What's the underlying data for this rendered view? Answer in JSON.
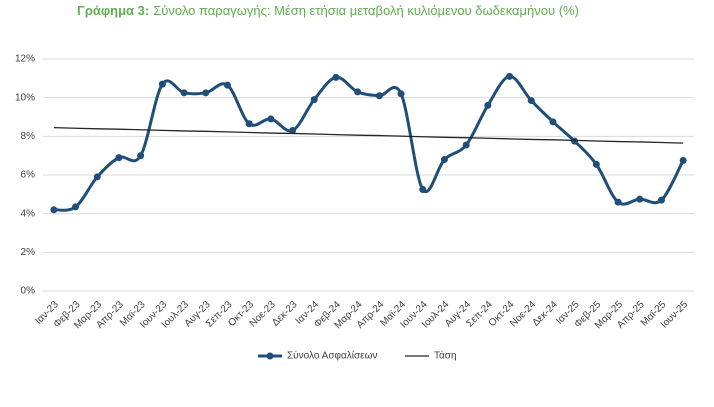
{
  "chart_data": {
    "type": "line",
    "title_label": "Γράφημα 3:",
    "title": "Σύνολο παραγωγής:  Μέση ετήσια μεταβολή κυλιόμενου δωδεκαμήνου (%)",
    "title_color": "#5fae4f",
    "categories": [
      "Ιαν-23",
      "Φεβ-23",
      "Μαρ-23",
      "Απρ-23",
      "Μαϊ-23",
      "Ιουν-23",
      "Ιουλ-23",
      "Αυγ-23",
      "Σεπ-23",
      "Οκτ-23",
      "Νοε-23",
      "Δεκ-23",
      "Ιαν-24",
      "Φεβ-24",
      "Μαρ-24",
      "Απρ-24",
      "Μαϊ-24",
      "Ιουν-24",
      "Ιουλ-24",
      "Αυγ-24",
      "Σεπ-24",
      "Οκτ-24",
      "Νοε-24",
      "Δεκ-24",
      "Ιαν-25",
      "Φεβ-25",
      "Μαρ-25",
      "Απρ-25",
      "Μαϊ-25",
      "Ιουν-25"
    ],
    "series": [
      {
        "name": "Σύνολο Ασφαλίσεων",
        "color": "#1f4e79",
        "smooth": true,
        "markers": true,
        "values": [
          4.2,
          4.35,
          5.9,
          6.9,
          7.0,
          10.7,
          10.25,
          10.25,
          10.65,
          8.65,
          8.9,
          8.3,
          9.9,
          11.05,
          10.3,
          10.1,
          10.2,
          5.25,
          6.8,
          7.55,
          9.6,
          11.1,
          9.85,
          8.75,
          7.75,
          6.55,
          4.6,
          4.75,
          4.7,
          6.75
        ]
      },
      {
        "name": "Τάση",
        "color": "#262626",
        "smooth": false,
        "markers": false,
        "values": [
          8.45,
          8.42,
          8.39,
          8.37,
          8.34,
          8.31,
          8.28,
          8.26,
          8.23,
          8.2,
          8.17,
          8.15,
          8.12,
          8.09,
          8.06,
          8.04,
          8.01,
          7.98,
          7.95,
          7.93,
          7.9,
          7.87,
          7.84,
          7.82,
          7.79,
          7.76,
          7.73,
          7.71,
          7.68,
          7.65
        ]
      }
    ],
    "ylim": [
      0,
      12
    ],
    "yticks": [
      {
        "value": 0,
        "label": "0%"
      },
      {
        "value": 2,
        "label": "2%"
      },
      {
        "value": 4,
        "label": "4%"
      },
      {
        "value": 6,
        "label": "6%"
      },
      {
        "value": 8,
        "label": "8%"
      },
      {
        "value": 10,
        "label": "10%"
      },
      {
        "value": 12,
        "label": "12%"
      }
    ],
    "grid": true,
    "legend": "bottom"
  }
}
